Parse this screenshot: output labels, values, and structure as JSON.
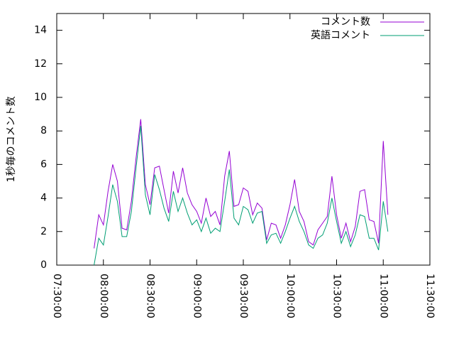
{
  "chart_data": {
    "type": "line",
    "ylabel": "1秒毎のコメント数",
    "legend": "top right",
    "x": [
      "07:54:00",
      "07:57:00",
      "08:00:00",
      "08:03:00",
      "08:06:00",
      "08:09:00",
      "08:12:00",
      "08:15:00",
      "08:18:00",
      "08:21:00",
      "08:24:00",
      "08:27:00",
      "08:30:00",
      "08:33:00",
      "08:36:00",
      "08:39:00",
      "08:42:00",
      "08:45:00",
      "08:48:00",
      "08:51:00",
      "08:54:00",
      "08:57:00",
      "09:00:00",
      "09:03:00",
      "09:06:00",
      "09:09:00",
      "09:12:00",
      "09:15:00",
      "09:18:00",
      "09:21:00",
      "09:24:00",
      "09:27:00",
      "09:30:00",
      "09:33:00",
      "09:36:00",
      "09:39:00",
      "09:42:00",
      "09:45:00",
      "09:48:00",
      "09:51:00",
      "09:54:00",
      "09:57:00",
      "10:00:00",
      "10:03:00",
      "10:06:00",
      "10:09:00",
      "10:12:00",
      "10:15:00",
      "10:18:00",
      "10:21:00",
      "10:24:00",
      "10:27:00",
      "10:30:00",
      "10:33:00",
      "10:36:00",
      "10:39:00",
      "10:42:00",
      "10:45:00",
      "10:48:00",
      "10:51:00",
      "10:54:00",
      "10:57:00",
      "11:00:00",
      "11:03:00"
    ],
    "series": [
      {
        "name": "コメント数",
        "color": "#9400d3",
        "values": [
          1.0,
          3.0,
          2.4,
          4.4,
          6.0,
          5.0,
          2.2,
          2.1,
          3.8,
          6.4,
          8.7,
          4.8,
          3.6,
          5.8,
          5.9,
          4.5,
          3.1,
          5.6,
          4.3,
          5.8,
          4.3,
          3.6,
          3.2,
          2.5,
          4.0,
          2.9,
          3.2,
          2.4,
          5.3,
          6.8,
          3.5,
          3.6,
          4.6,
          4.4,
          3.0,
          3.7,
          3.4,
          1.5,
          2.5,
          2.4,
          1.6,
          2.4,
          3.6,
          5.1,
          3.2,
          2.6,
          1.4,
          1.2,
          2.1,
          2.5,
          2.9,
          5.3,
          3.0,
          1.6,
          2.5,
          1.4,
          2.3,
          4.4,
          4.5,
          2.7,
          2.6,
          1.3,
          7.4,
          3.0
        ]
      },
      {
        "name": "英語コメント",
        "color": "#009e73",
        "values": [
          0.0,
          1.6,
          1.2,
          2.9,
          4.8,
          3.8,
          1.7,
          1.7,
          3.2,
          5.8,
          8.3,
          4.2,
          3.0,
          5.4,
          4.5,
          3.4,
          2.6,
          4.4,
          3.2,
          4.0,
          3.1,
          2.4,
          2.7,
          2.0,
          2.8,
          1.9,
          2.2,
          2.0,
          3.8,
          5.7,
          2.8,
          2.4,
          3.5,
          3.3,
          2.5,
          3.1,
          3.2,
          1.3,
          1.8,
          1.9,
          1.3,
          2.0,
          2.8,
          3.5,
          2.6,
          2.0,
          1.2,
          1.0,
          1.6,
          1.8,
          2.5,
          4.0,
          2.6,
          1.3,
          2.0,
          1.1,
          1.8,
          3.0,
          2.9,
          1.6,
          1.6,
          0.9,
          3.8,
          2.0
        ]
      }
    ],
    "xlim": [
      "07:30:00",
      "11:30:00"
    ],
    "xticks": [
      "07:30:00",
      "08:00:00",
      "08:30:00",
      "09:00:00",
      "09:30:00",
      "10:00:00",
      "10:30:00",
      "11:00:00",
      "11:30:00"
    ],
    "ylim": [
      0,
      15
    ],
    "yticks": [
      0,
      2,
      4,
      6,
      8,
      10,
      12,
      14
    ]
  }
}
